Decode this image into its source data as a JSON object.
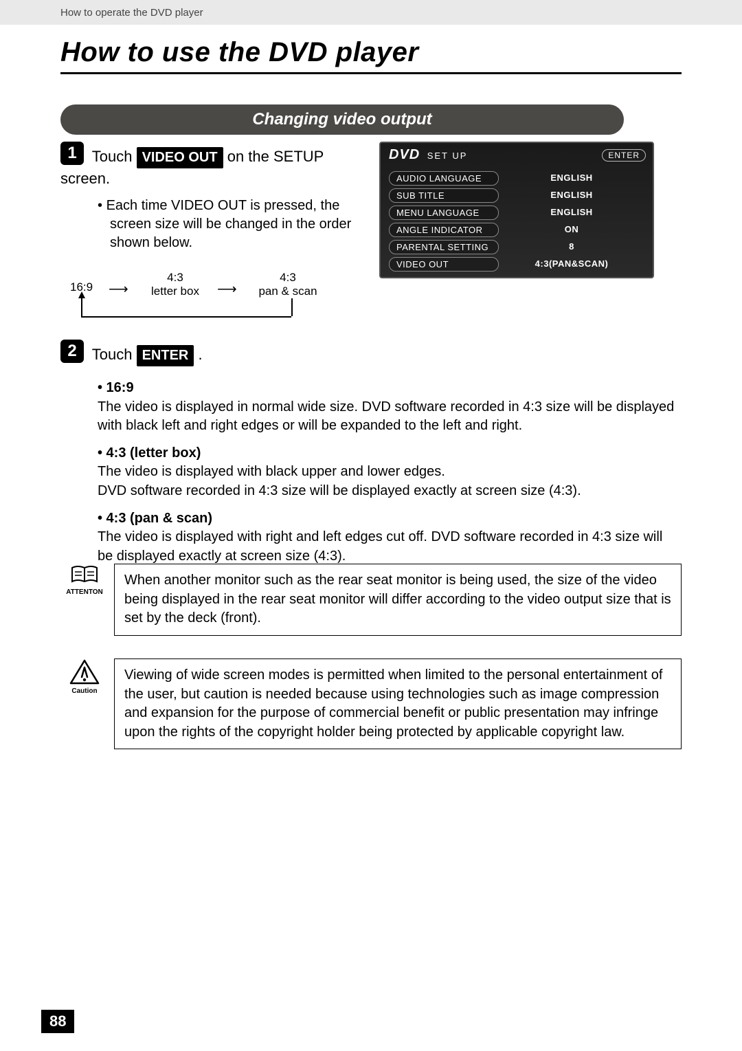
{
  "breadcrumb": "How to operate the DVD player",
  "page_title": "How to use the DVD player",
  "section_title": "Changing video output",
  "step1": {
    "num": "1",
    "pre": "Touch",
    "button": "VIDEO OUT",
    "post": "on the SETUP screen.",
    "bullet": "Each time VIDEO OUT is pressed, the screen size will be changed in the order shown below."
  },
  "cycle": {
    "a": "16:9",
    "b_top": "4:3",
    "b_bot": "letter box",
    "c_top": "4:3",
    "c_bot": "pan & scan"
  },
  "step2": {
    "num": "2",
    "pre": "Touch",
    "button": "ENTER",
    "post": "."
  },
  "modes": [
    {
      "head": "16:9",
      "body": "The video is displayed in normal wide size.  DVD software recorded in 4:3 size will be displayed with black left and right edges or will be expanded to the left and right."
    },
    {
      "head": "4:3 (letter box)",
      "body": "The video is displayed with black upper and lower edges.\nDVD software recorded in 4:3 size will be displayed exactly at screen size (4:3)."
    },
    {
      "head": "4:3 (pan & scan)",
      "body": "The video is displayed with right and left edges cut off.  DVD software recorded in 4:3 size will be displayed exactly at screen size (4:3)."
    }
  ],
  "screenshot": {
    "brand": "DVD",
    "mode": "SET UP",
    "enter": "ENTER",
    "rows": [
      {
        "k": "AUDIO LANGUAGE",
        "v": "ENGLISH"
      },
      {
        "k": "SUB TITLE",
        "v": "ENGLISH"
      },
      {
        "k": "MENU LANGUAGE",
        "v": "ENGLISH"
      },
      {
        "k": "ANGLE INDICATOR",
        "v": "ON"
      },
      {
        "k": "PARENTAL SETTING",
        "v": "8"
      },
      {
        "k": "VIDEO OUT",
        "v": "4:3(PAN&SCAN)"
      }
    ]
  },
  "attention": {
    "label": "ATTENTON",
    "text": "When another monitor such as the rear seat monitor is being used, the size of the video being displayed in the rear seat monitor will differ according to the video output size that is set by the deck (front)."
  },
  "caution": {
    "label": "Caution",
    "text": "Viewing of wide screen modes is permitted when limited to the personal entertainment of the user, but caution is needed because using technologies such as image compression and expansion for the purpose of commercial benefit or public presentation may infringe upon the rights of the copyright holder being protected by applicable copyright law."
  },
  "page_number": "88"
}
